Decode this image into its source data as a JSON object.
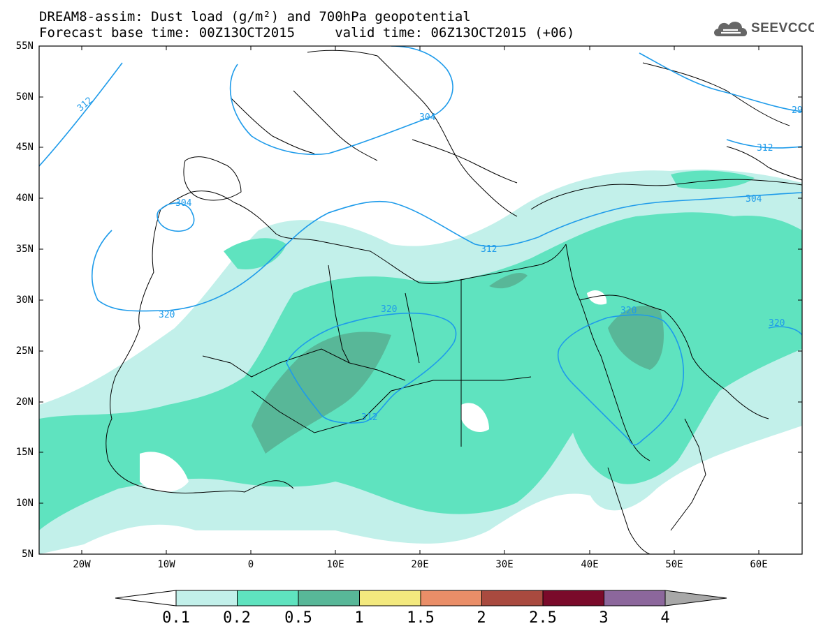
{
  "header": {
    "title_line1": "DREAM8-assim: Dust load (g/m²) and 700hPa geopotential",
    "title_line2": "Forecast base time: 00Z13OCT2015     valid time: 06Z13OCT2015 (+06)",
    "logo_text": "SEEVCCC"
  },
  "map": {
    "lat_labels": [
      "55N",
      "50N",
      "45N",
      "40N",
      "35N",
      "30N",
      "25N",
      "20N",
      "15N",
      "10N",
      "5N"
    ],
    "lon_labels": [
      "20W",
      "10W",
      "0",
      "10E",
      "20E",
      "30E",
      "40E",
      "50E",
      "60E"
    ],
    "contour_labels": [
      "312",
      "304",
      "304",
      "312",
      "320",
      "320",
      "312",
      "320",
      "304",
      "312",
      "29",
      "320"
    ],
    "colors": {
      "coast": "#000000",
      "contour": "#1e9bea"
    }
  },
  "colorbar": {
    "labels": [
      "0.1",
      "0.2",
      "0.5",
      "1",
      "1.5",
      "2",
      "2.5",
      "3",
      "4"
    ],
    "colors": [
      "#ffffff",
      "#c2f0ea",
      "#5fe3bf",
      "#58b798",
      "#f3e97e",
      "#ea8e68",
      "#a94a3f",
      "#7a0a2a",
      "#8c679c",
      "#a8a8a8"
    ]
  }
}
